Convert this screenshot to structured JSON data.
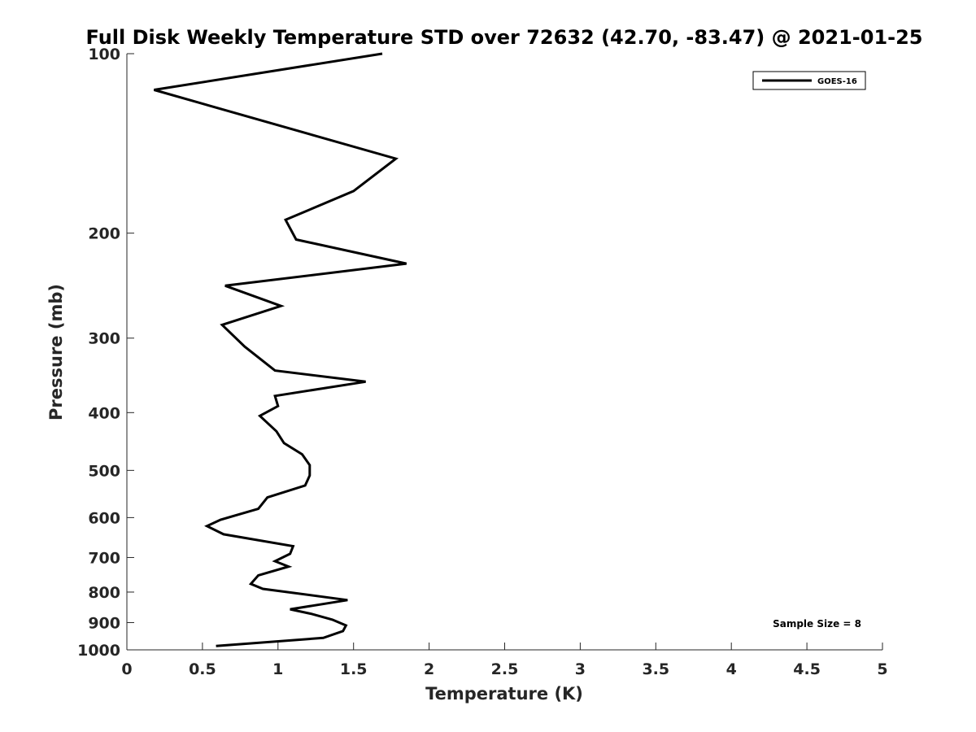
{
  "chart_data": {
    "type": "line",
    "title": "Full Disk Weekly Temperature STD over 72632 (42.70, -83.47) @ 2021-01-25",
    "xlabel": "Temperature (K)",
    "ylabel": "Pressure (mb)",
    "xlim": [
      0,
      5
    ],
    "ylim": [
      1000,
      100
    ],
    "y_scale": "log",
    "y_reversed": true,
    "grid": false,
    "x_ticks": [
      "0",
      "0.5",
      "1",
      "1.5",
      "2",
      "2.5",
      "3",
      "3.5",
      "4",
      "4.5",
      "5"
    ],
    "y_ticks": [
      100,
      200,
      300,
      400,
      500,
      600,
      700,
      800,
      900,
      1000
    ],
    "legend_placement": "top-right",
    "annotation": "Sample Size = 8",
    "series": [
      {
        "name": "GOES-16",
        "color": "#000000",
        "x": [
          1.69,
          0.18,
          1.78,
          1.5,
          1.05,
          1.12,
          1.85,
          0.65,
          1.02,
          0.63,
          0.78,
          0.98,
          1.58,
          0.98,
          1.0,
          0.88,
          0.99,
          1.04,
          1.16,
          1.21,
          1.21,
          1.18,
          0.93,
          0.87,
          0.62,
          0.53,
          0.64,
          1.1,
          1.08,
          0.98,
          1.07,
          0.87,
          0.82,
          0.9,
          1.46,
          1.08,
          1.22,
          1.36,
          1.45,
          1.43,
          1.3,
          0.59
        ],
        "y": [
          100,
          115,
          150,
          170,
          190,
          205,
          225,
          245,
          265,
          285,
          310,
          340,
          355,
          375,
          390,
          405,
          430,
          450,
          470,
          490,
          510,
          530,
          555,
          580,
          605,
          620,
          640,
          670,
          690,
          710,
          725,
          750,
          775,
          790,
          825,
          855,
          870,
          890,
          910,
          930,
          955,
          985
        ]
      }
    ]
  }
}
